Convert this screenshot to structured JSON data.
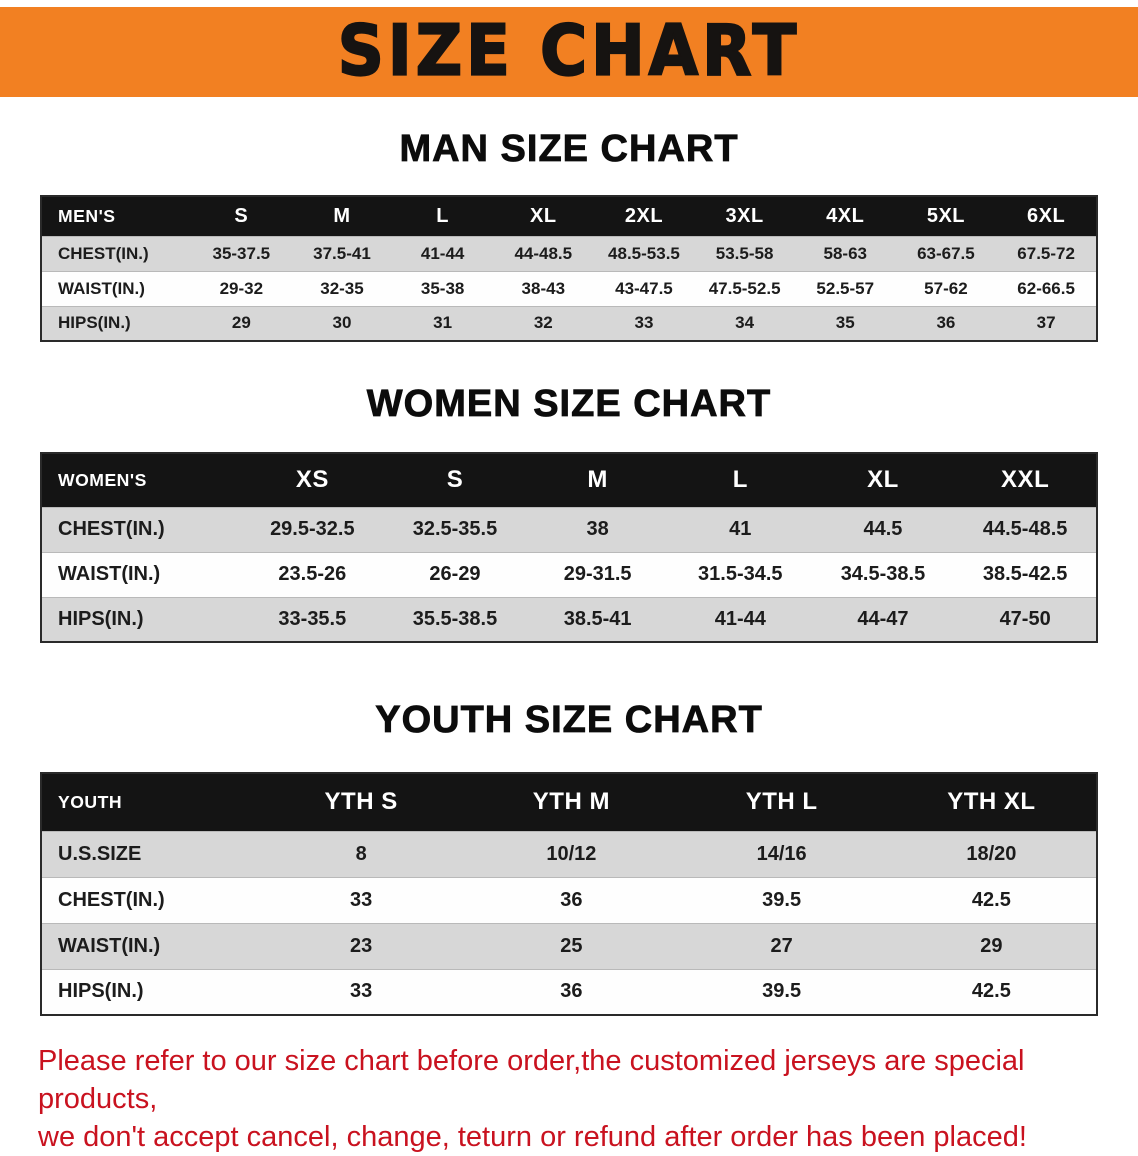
{
  "banner": {
    "title": "SIZE CHART",
    "bg_color": "#F28022",
    "text_color": "#161311"
  },
  "sections": [
    {
      "heading": "MAN SIZE CHART",
      "table": {
        "header": [
          "MEN'S",
          "S",
          "M",
          "L",
          "XL",
          "2XL",
          "3XL",
          "4XL",
          "5XL",
          "6XL"
        ],
        "rows": [
          [
            "CHEST(IN.)",
            "35-37.5",
            "37.5-41",
            "41-44",
            "44-48.5",
            "48.5-53.5",
            "53.5-58",
            "58-63",
            "63-67.5",
            "67.5-72"
          ],
          [
            "WAIST(IN.)",
            "29-32",
            "32-35",
            "35-38",
            "38-43",
            "43-47.5",
            "47.5-52.5",
            "52.5-57",
            "57-62",
            "62-66.5"
          ],
          [
            "HIPS(IN.)",
            "29",
            "30",
            "31",
            "32",
            "33",
            "34",
            "35",
            "36",
            "37"
          ]
        ]
      }
    },
    {
      "heading": "WOMEN SIZE CHART",
      "table": {
        "header": [
          "WOMEN'S",
          "XS",
          "S",
          "M",
          "L",
          "XL",
          "XXL"
        ],
        "rows": [
          [
            "CHEST(IN.)",
            "29.5-32.5",
            "32.5-35.5",
            "38",
            "41",
            "44.5",
            "44.5-48.5"
          ],
          [
            "WAIST(IN.)",
            "23.5-26",
            "26-29",
            "29-31.5",
            "31.5-34.5",
            "34.5-38.5",
            "38.5-42.5"
          ],
          [
            "HIPS(IN.)",
            "33-35.5",
            "35.5-38.5",
            "38.5-41",
            "41-44",
            "44-47",
            "47-50"
          ]
        ]
      }
    },
    {
      "heading": "YOUTH SIZE CHART",
      "table": {
        "header": [
          "YOUTH",
          "YTH S",
          "YTH M",
          "YTH L",
          "YTH XL"
        ],
        "rows": [
          [
            "U.S.SIZE",
            "8",
            "10/12",
            "14/16",
            "18/20"
          ],
          [
            "CHEST(IN.)",
            "33",
            "36",
            "39.5",
            "42.5"
          ],
          [
            "WAIST(IN.)",
            "23",
            "25",
            "27",
            "29"
          ],
          [
            "HIPS(IN.)",
            "33",
            "36",
            "39.5",
            "42.5"
          ]
        ]
      }
    }
  ],
  "footer": {
    "lines": [
      "Please refer to our size chart before order,the customized jerseys are special products,",
      "we don't accept cancel, change, teturn or refund after order has been placed!"
    ],
    "text_color": "#c9121f"
  },
  "colors": {
    "table_header_bg": "#141414",
    "row_stripe": "#d7d7d7",
    "page_bg": "#ffffff"
  }
}
